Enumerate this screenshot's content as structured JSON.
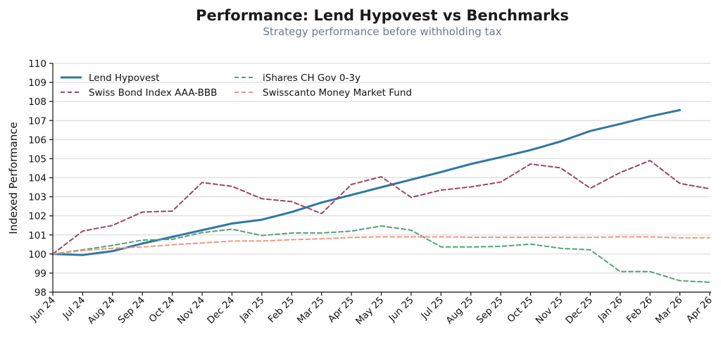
{
  "chart_data": {
    "type": "line",
    "title": "Performance: Lend Hypovest vs Benchmarks",
    "subtitle": "Strategy performance before withholding tax",
    "xlabel": "",
    "ylabel": "Indexed Performance",
    "categories": [
      "Jun 24",
      "Jul 24",
      "Aug 24",
      "Sep 24",
      "Oct 24",
      "Nov 24",
      "Dec 24",
      "Jan 25",
      "Feb 25",
      "Mar 25",
      "Apr 25",
      "May 25",
      "Jun 25",
      "Jul 25",
      "Aug 25",
      "Sep 25",
      "Oct 25",
      "Nov 25",
      "Dec 25",
      "Jan 26",
      "Feb 26",
      "Mar 26",
      "Apr 26"
    ],
    "ylim": [
      98,
      110
    ],
    "yticks": [
      98,
      99,
      100,
      101,
      102,
      103,
      104,
      105,
      106,
      107,
      108,
      109,
      110
    ],
    "grid": "horizontal",
    "legend_position": "top-left",
    "series": [
      {
        "name": "Lend Hypovest",
        "style": "solid",
        "color": "#2f77a4",
        "values": [
          100.0,
          99.95,
          100.15,
          100.55,
          100.9,
          101.25,
          101.6,
          101.8,
          102.2,
          102.7,
          103.1,
          103.5,
          103.9,
          104.3,
          104.72,
          105.08,
          105.45,
          105.9,
          106.45,
          106.82,
          107.22,
          107.55,
          null
        ]
      },
      {
        "name": "Swiss Bond Index AAA-BBB",
        "style": "dashed",
        "color": "#9b4468",
        "values": [
          100.0,
          101.2,
          101.5,
          102.2,
          102.25,
          103.75,
          103.55,
          102.9,
          102.75,
          102.12,
          103.65,
          104.05,
          102.97,
          103.35,
          103.52,
          103.77,
          104.72,
          104.52,
          103.45,
          104.27,
          104.9,
          103.7,
          103.42
        ]
      },
      {
        "name": "iShares CH Gov 0-3y",
        "style": "dashed",
        "color": "#55a07a",
        "values": [
          100.0,
          100.22,
          100.45,
          100.73,
          100.77,
          101.12,
          101.3,
          100.97,
          101.1,
          101.1,
          101.2,
          101.47,
          101.25,
          100.37,
          100.37,
          100.4,
          100.52,
          100.3,
          100.22,
          99.08,
          99.08,
          98.6,
          98.52
        ]
      },
      {
        "name": "Swisscanto Money Market Fund",
        "style": "dashed",
        "color": "#ee9a7e",
        "values": [
          100.0,
          100.18,
          100.3,
          100.37,
          100.48,
          100.58,
          100.68,
          100.68,
          100.75,
          100.8,
          100.87,
          100.9,
          100.9,
          100.9,
          100.88,
          100.88,
          100.88,
          100.88,
          100.87,
          100.9,
          100.9,
          100.85,
          100.85
        ]
      }
    ]
  }
}
